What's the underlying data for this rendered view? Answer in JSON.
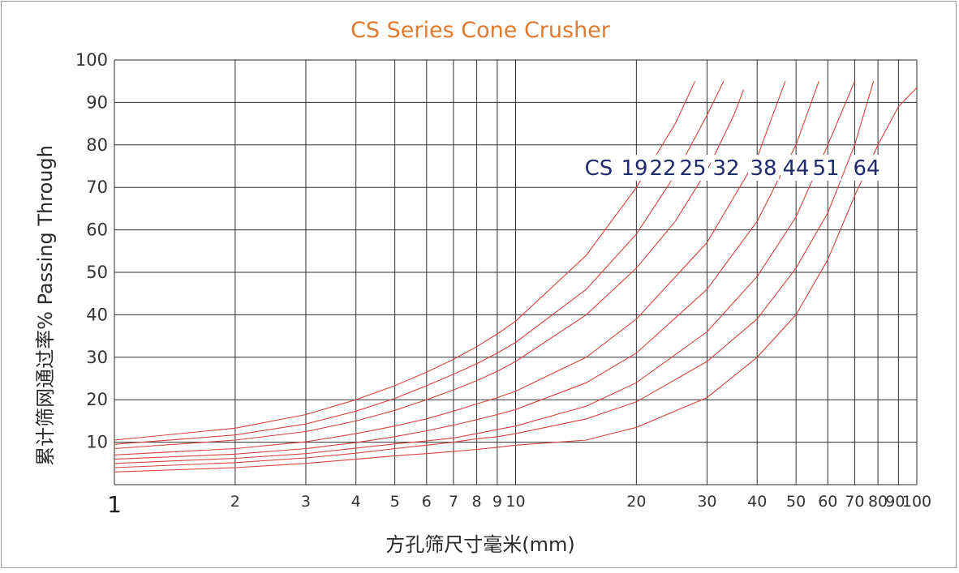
{
  "chart_data": {
    "type": "line",
    "title": "CS Series Cone Crusher",
    "xlabel": "方孔筛尺寸毫米(mm)",
    "ylabel": "累计筛网通过率%  Passing Through",
    "x_scale": "log",
    "xlim": [
      1,
      100
    ],
    "ylim": [
      0,
      100
    ],
    "grid": true,
    "x_ticks": [
      1,
      2,
      3,
      4,
      5,
      6,
      7,
      8,
      9,
      10,
      20,
      30,
      40,
      50,
      60,
      70,
      80,
      90,
      100
    ],
    "x_tick_labels": [
      "1",
      "2",
      "3",
      "4",
      "5",
      "6",
      "7",
      "8",
      "9",
      "10",
      "20",
      "30",
      "40",
      "50",
      "60",
      "70",
      "80",
      "90",
      "100"
    ],
    "y_ticks": [
      10,
      20,
      30,
      40,
      50,
      60,
      70,
      80,
      90,
      100
    ],
    "y_tick_labels": [
      "10",
      "20",
      "30",
      "40",
      "50",
      "60",
      "70",
      "80",
      "90",
      "100"
    ],
    "curve_label_prefix": "CS",
    "series": [
      {
        "name": "19",
        "color": "#d6423f",
        "points": [
          [
            1,
            10.5
          ],
          [
            2,
            13.3
          ],
          [
            3,
            16.5
          ],
          [
            4,
            20
          ],
          [
            5,
            23.3
          ],
          [
            6,
            26.5
          ],
          [
            7,
            29.5
          ],
          [
            8,
            32.5
          ],
          [
            9,
            35.5
          ],
          [
            10,
            38.5
          ],
          [
            15,
            54
          ],
          [
            20,
            70
          ],
          [
            25,
            85
          ],
          [
            28,
            95
          ]
        ]
      },
      {
        "name": "22",
        "color": "#d6423f",
        "points": [
          [
            1,
            9.5
          ],
          [
            2,
            11.7
          ],
          [
            3,
            14.3
          ],
          [
            4,
            17.3
          ],
          [
            5,
            20.3
          ],
          [
            6,
            23.3
          ],
          [
            7,
            26
          ],
          [
            8,
            28.5
          ],
          [
            9,
            31
          ],
          [
            10,
            33.5
          ],
          [
            15,
            46
          ],
          [
            20,
            59
          ],
          [
            25,
            73
          ],
          [
            30,
            87
          ],
          [
            33,
            95
          ]
        ]
      },
      {
        "name": "25",
        "color": "#d6423f",
        "points": [
          [
            1,
            8.5
          ],
          [
            2,
            10.5
          ],
          [
            3,
            12.5
          ],
          [
            4,
            15
          ],
          [
            5,
            17.5
          ],
          [
            6,
            20
          ],
          [
            7,
            22.3
          ],
          [
            8,
            24.5
          ],
          [
            9,
            26.7
          ],
          [
            10,
            29
          ],
          [
            15,
            40
          ],
          [
            20,
            51
          ],
          [
            25,
            62
          ],
          [
            30,
            74
          ],
          [
            35,
            87
          ],
          [
            37,
            93
          ]
        ]
      },
      {
        "name": "32",
        "color": "#d6423f",
        "points": [
          [
            1,
            7
          ],
          [
            2,
            8.5
          ],
          [
            3,
            10.1
          ],
          [
            4,
            12
          ],
          [
            5,
            13.8
          ],
          [
            6,
            15.5
          ],
          [
            7,
            17.3
          ],
          [
            8,
            19
          ],
          [
            9,
            20.5
          ],
          [
            10,
            22
          ],
          [
            15,
            30
          ],
          [
            20,
            39
          ],
          [
            30,
            57
          ],
          [
            40,
            77
          ],
          [
            47,
            95
          ]
        ]
      },
      {
        "name": "38",
        "color": "#d6423f",
        "points": [
          [
            1,
            6
          ],
          [
            2,
            7.2
          ],
          [
            3,
            8.5
          ],
          [
            4,
            9.9
          ],
          [
            5,
            11.3
          ],
          [
            6,
            12.7
          ],
          [
            7,
            14
          ],
          [
            8,
            15.3
          ],
          [
            9,
            16.5
          ],
          [
            10,
            17.7
          ],
          [
            15,
            24
          ],
          [
            20,
            31
          ],
          [
            30,
            46
          ],
          [
            40,
            62
          ],
          [
            50,
            80
          ],
          [
            57,
            95
          ]
        ]
      },
      {
        "name": "44",
        "color": "#d6423f",
        "points": [
          [
            1,
            5
          ],
          [
            2,
            6.2
          ],
          [
            3,
            7.3
          ],
          [
            4,
            8.6
          ],
          [
            5,
            9.6
          ],
          [
            6,
            10.3
          ],
          [
            7,
            11
          ],
          [
            8,
            12
          ],
          [
            9,
            13
          ],
          [
            10,
            13.8
          ],
          [
            15,
            18.5
          ],
          [
            20,
            24
          ],
          [
            30,
            36
          ],
          [
            40,
            49
          ],
          [
            50,
            63
          ],
          [
            60,
            80
          ],
          [
            70,
            95
          ]
        ]
      },
      {
        "name": "51",
        "color": "#d6423f",
        "points": [
          [
            1,
            4
          ],
          [
            2,
            5.2
          ],
          [
            3,
            6.3
          ],
          [
            4,
            7.4
          ],
          [
            5,
            8.5
          ],
          [
            6,
            9.3
          ],
          [
            7,
            10
          ],
          [
            8,
            10.8
          ],
          [
            9,
            11.3
          ],
          [
            10,
            12
          ],
          [
            15,
            15.5
          ],
          [
            20,
            19.5
          ],
          [
            30,
            29
          ],
          [
            40,
            39
          ],
          [
            50,
            51
          ],
          [
            60,
            64
          ],
          [
            70,
            80
          ],
          [
            78,
            95
          ]
        ]
      },
      {
        "name": "64",
        "color": "#d6423f",
        "points": [
          [
            1,
            3
          ],
          [
            2,
            4
          ],
          [
            3,
            5
          ],
          [
            4,
            6
          ],
          [
            5,
            6.8
          ],
          [
            6,
            7.3
          ],
          [
            7,
            7.8
          ],
          [
            8,
            8.3
          ],
          [
            9,
            8.8
          ],
          [
            10,
            9.3
          ],
          [
            15,
            10.5
          ],
          [
            20,
            13.5
          ],
          [
            30,
            20.5
          ],
          [
            40,
            30
          ],
          [
            50,
            40
          ],
          [
            60,
            53
          ],
          [
            70,
            68
          ],
          [
            80,
            80
          ],
          [
            90,
            89
          ],
          [
            100,
            93.5
          ]
        ]
      }
    ]
  }
}
